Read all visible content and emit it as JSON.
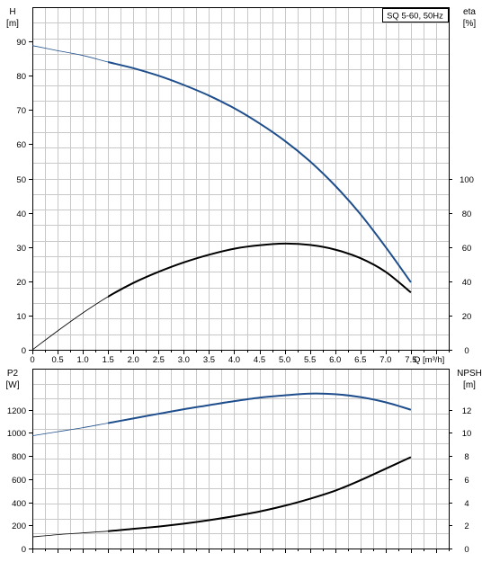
{
  "chart_data": [
    {
      "type": "line",
      "title": "SQ 5-60, 50Hz",
      "xlabel": "Q [m³/h]",
      "xlim": [
        0,
        8.25
      ],
      "x_ticks": [
        "0",
        "0.5",
        "1.0",
        "1.5",
        "2.0",
        "2.5",
        "3.0",
        "3.5",
        "4.0",
        "4.5",
        "5.0",
        "5.5",
        "6.0",
        "6.5",
        "7.0",
        "7.5"
      ],
      "y_left": {
        "label_line1": "H",
        "label_line2": "[m]",
        "lim": [
          0,
          100
        ],
        "ticks": [
          "0",
          "10",
          "20",
          "30",
          "40",
          "50",
          "60",
          "70",
          "80",
          "90"
        ]
      },
      "y_right": {
        "label_line1": "eta",
        "label_line2": "[%]",
        "lim": [
          0,
          200
        ],
        "ticks": [
          "0",
          "20",
          "40",
          "60",
          "80",
          "100"
        ]
      },
      "grid": true,
      "series": [
        {
          "axis": "left",
          "color": "#1f4e8c",
          "x": [
            0,
            0.5,
            1.0,
            1.5,
            2.0,
            2.5,
            3.0,
            3.5,
            4.0,
            4.5,
            5.0,
            5.5,
            6.0,
            6.5,
            7.0,
            7.5
          ],
          "values": [
            88.8,
            87.3,
            85.9,
            84.0,
            82.2,
            80.0,
            77.3,
            74.2,
            70.5,
            66.1,
            61.0,
            55.0,
            47.9,
            39.6,
            30.0,
            19.7
          ]
        },
        {
          "axis": "right",
          "color": "#000000",
          "x": [
            0,
            0.5,
            1.0,
            1.5,
            2.0,
            2.5,
            3.0,
            3.5,
            4.0,
            4.5,
            5.0,
            5.5,
            6.0,
            6.5,
            7.0,
            7.5
          ],
          "values": [
            0,
            11,
            21.5,
            31,
            39,
            45.5,
            51,
            55.5,
            59,
            61,
            62,
            61.2,
            58.5,
            53.5,
            45.5,
            33.5
          ]
        }
      ]
    },
    {
      "type": "line",
      "xlim": [
        0,
        8.25
      ],
      "y_left": {
        "label_line1": "P2",
        "label_line2": "[W]",
        "lim": [
          0,
          1400
        ],
        "ticks": [
          "0",
          "200",
          "400",
          "600",
          "800",
          "1000",
          "1200"
        ]
      },
      "y_right": {
        "label_line1": "NPSH",
        "label_line2": "[m]",
        "lim": [
          0,
          14
        ],
        "ticks": [
          "0",
          "2",
          "4",
          "6",
          "8",
          "10",
          "12"
        ]
      },
      "grid": true,
      "series": [
        {
          "axis": "left",
          "color": "#1f4e8c",
          "x": [
            0,
            0.5,
            1.0,
            1.5,
            2.0,
            2.5,
            3.0,
            3.5,
            4.0,
            4.5,
            5.0,
            5.5,
            6.0,
            6.5,
            7.0,
            7.5
          ],
          "values": [
            975,
            1010,
            1045,
            1085,
            1125,
            1165,
            1205,
            1240,
            1275,
            1305,
            1325,
            1340,
            1335,
            1310,
            1265,
            1200
          ]
        },
        {
          "axis": "right",
          "color": "#000000",
          "x": [
            0,
            0.5,
            1.0,
            1.5,
            2.0,
            2.5,
            3.0,
            3.5,
            4.0,
            4.5,
            5.0,
            5.5,
            6.0,
            6.5,
            7.0,
            7.5
          ],
          "values": [
            1.0,
            1.2,
            1.35,
            1.5,
            1.7,
            1.9,
            2.15,
            2.45,
            2.8,
            3.2,
            3.7,
            4.3,
            5.0,
            5.9,
            6.9,
            7.9
          ]
        }
      ]
    }
  ]
}
